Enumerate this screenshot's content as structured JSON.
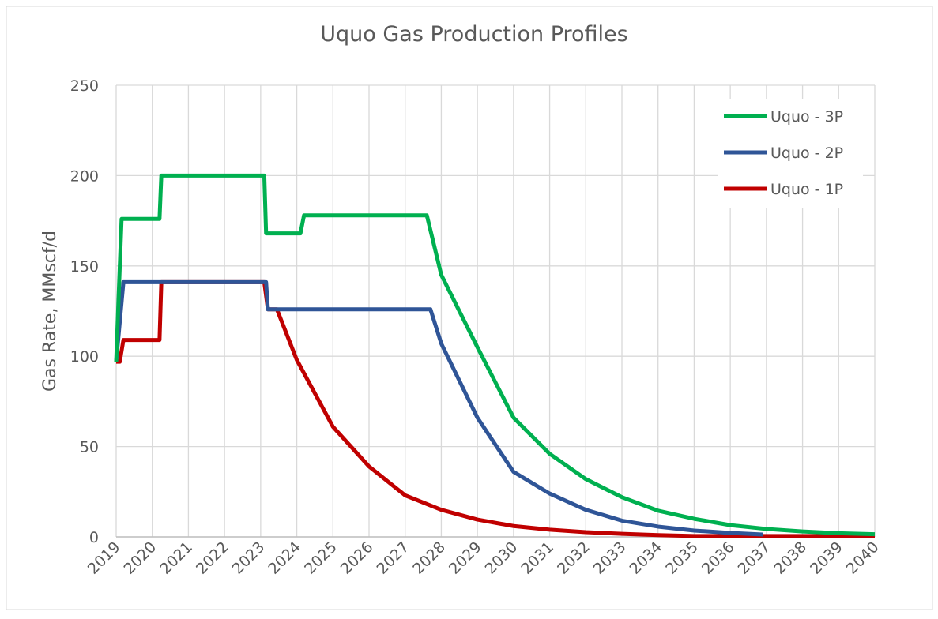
{
  "chart_data": {
    "type": "line",
    "title": "Uquo Gas Production Profiles",
    "y_label": "Gas Rate, MMscf/d",
    "xlim": [
      2019,
      2040
    ],
    "xticks": [
      2019,
      2020,
      2021,
      2022,
      2023,
      2024,
      2025,
      2026,
      2027,
      2028,
      2029,
      2030,
      2031,
      2032,
      2033,
      2034,
      2035,
      2036,
      2037,
      2038,
      2039,
      2040
    ],
    "ylim": [
      0,
      250
    ],
    "yticks": [
      0,
      50,
      100,
      150,
      200,
      250
    ],
    "grid": true,
    "legend": "top-right",
    "series": [
      {
        "name": "Uquo - 3P",
        "color": "#00b050",
        "x": [
          2019.0,
          2019.15,
          2020.2,
          2020.25,
          2023.1,
          2023.15,
          2024.1,
          2024.2,
          2027.6,
          2028,
          2029,
          2030,
          2031,
          2032,
          2033,
          2034,
          2035,
          2036,
          2037,
          2038,
          2039,
          2040
        ],
        "values": [
          97,
          176,
          176,
          200,
          200,
          168,
          168,
          178,
          178,
          145,
          105,
          66,
          46,
          32,
          22,
          14.5,
          10,
          6.5,
          4.4,
          3,
          2,
          1.5
        ]
      },
      {
        "name": "Uquo - 2P",
        "color": "#2f5597",
        "x": [
          2019.0,
          2019.2,
          2023.15,
          2023.2,
          2027.7,
          2028,
          2029,
          2030,
          2031,
          2032,
          2033,
          2034,
          2035,
          2036,
          2036.9
        ],
        "values": [
          97,
          141,
          141,
          126,
          126,
          107,
          66,
          36,
          24,
          15,
          9,
          5.7,
          3.5,
          2.2,
          1.3
        ]
      },
      {
        "name": "Uquo - 1P",
        "color": "#c00000",
        "x": [
          2019.0,
          2019.1,
          2019.2,
          2020.2,
          2020.25,
          2023.1,
          2023.2,
          2023.45,
          2024,
          2025,
          2026,
          2027,
          2028,
          2029,
          2030,
          2031,
          2032,
          2033,
          2034,
          2035,
          2040
        ],
        "values": [
          97,
          97,
          109,
          109,
          141,
          141,
          126,
          126,
          98,
          61,
          39,
          23,
          15,
          9.6,
          6,
          4,
          2.6,
          1.7,
          1,
          0.5,
          0.5
        ]
      }
    ]
  }
}
